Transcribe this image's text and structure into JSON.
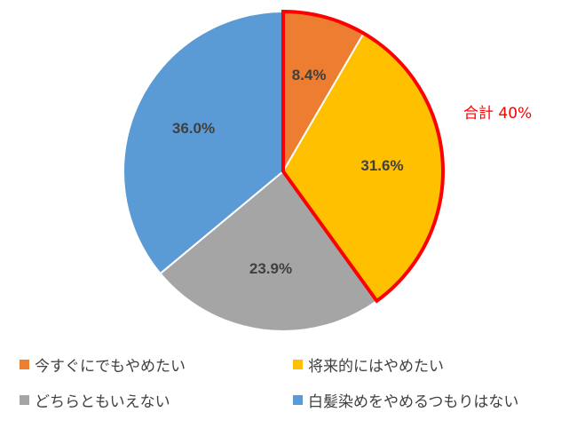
{
  "chart_data": {
    "type": "pie",
    "categories": [
      "今すぐにでもやめたい",
      "将来的にはやめたい",
      "どちらともいえない",
      "白髪染めをやめるつもりはない"
    ],
    "values": [
      8.4,
      31.6,
      23.9,
      36.0
    ],
    "value_labels": [
      "8.4%",
      "31.6%",
      "23.9%",
      "36.0%"
    ],
    "colors": [
      "#ED7D31",
      "#FFC000",
      "#A5A5A5",
      "#5B9BD5"
    ],
    "start": "12 o'clock",
    "direction": "clockwise",
    "legend_position": "bottom",
    "annotation": {
      "text": "合計 40%",
      "highlighted_categories": [
        "今すぐにでもやめたい",
        "将来的にはやめたい"
      ],
      "color": "#FF0000"
    }
  }
}
